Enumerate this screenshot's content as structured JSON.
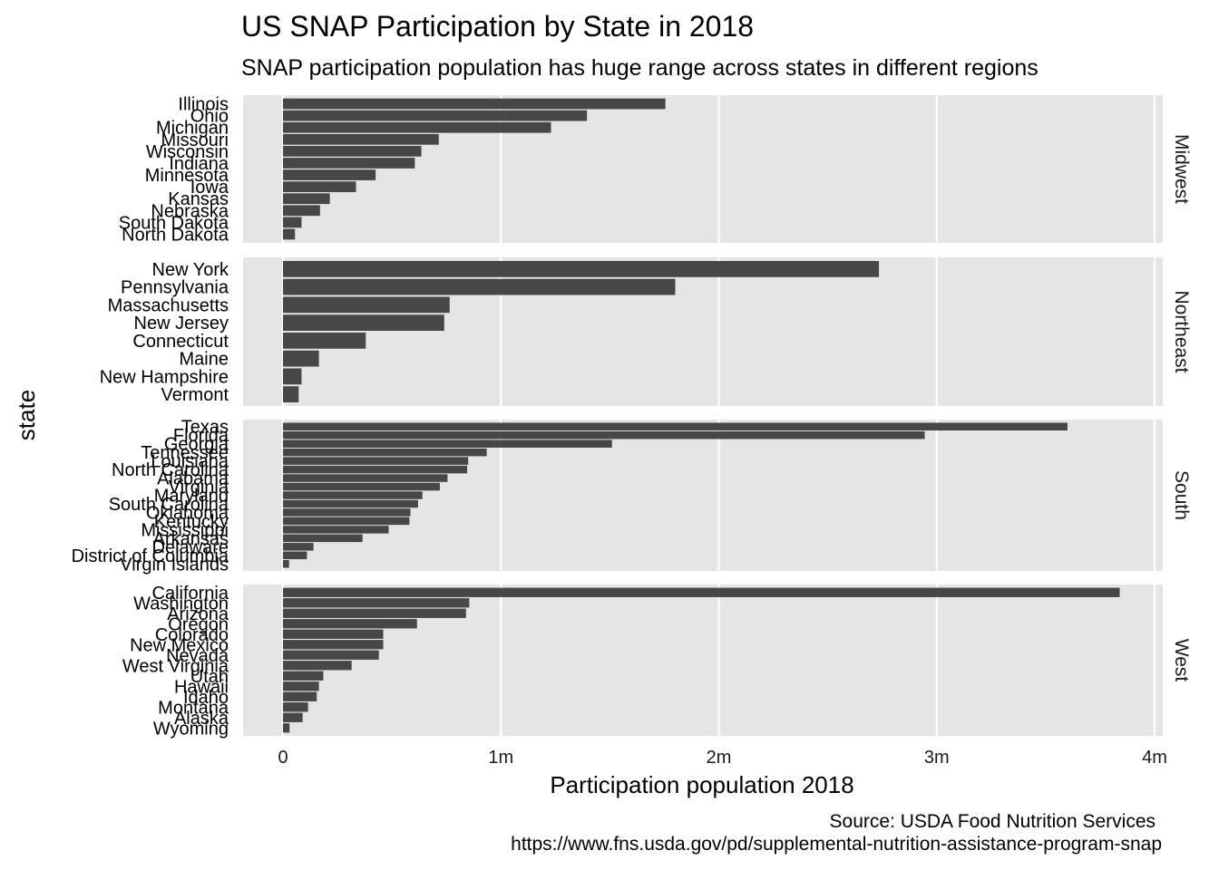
{
  "chart_data": {
    "type": "bar",
    "orientation": "horizontal",
    "faceted": true,
    "title": "US SNAP Participation by State in 2018",
    "subtitle": "SNAP participation population has huge range across states in different regions",
    "xlabel": "Participation population 2018",
    "ylabel": "state",
    "xlim": [
      0,
      4000000
    ],
    "xticks": [
      {
        "value": 0,
        "label": "0"
      },
      {
        "value": 1000000,
        "label": "1m"
      },
      {
        "value": 2000000,
        "label": "2m"
      },
      {
        "value": 3000000,
        "label": "3m"
      },
      {
        "value": 4000000,
        "label": "4m"
      }
    ],
    "grid": true,
    "caption": [
      "Source: USDA Food Nutrition Services",
      "https://www.fns.usda.gov/pd/supplemental-nutrition-assistance-program-snap"
    ],
    "bar_color": "#474747",
    "panel_color": "#e5e5e5",
    "facets": [
      {
        "name": "Midwest",
        "categories": [
          "Illinois",
          "Ohio",
          "Michigan",
          "Missouri",
          "Wisconsin",
          "Indiana",
          "Minnesota",
          "Iowa",
          "Kansas",
          "Nebraska",
          "South Dakota",
          "North Dakota"
        ],
        "values": [
          1755000,
          1395000,
          1230000,
          715000,
          635000,
          605000,
          425000,
          335000,
          215000,
          170000,
          85000,
          55000
        ]
      },
      {
        "name": "Northeast",
        "categories": [
          "New York",
          "Pennsylvania",
          "Massachusetts",
          "New Jersey",
          "Connecticut",
          "Maine",
          "New Hampshire",
          "Vermont"
        ],
        "values": [
          2735000,
          1800000,
          765000,
          740000,
          380000,
          165000,
          85000,
          72000
        ]
      },
      {
        "name": "South",
        "categories": [
          "Texas",
          "Florida",
          "Georgia",
          "Tennessee",
          "Louisiana",
          "North Carolina",
          "Alabama",
          "Virginia",
          "Maryland",
          "South Carolina",
          "Oklahoma",
          "Kentucky",
          "Mississippi",
          "Arkansas",
          "Delaware",
          "District of Columbia",
          "Virgin Islands"
        ],
        "values": [
          3600000,
          2945000,
          1510000,
          935000,
          850000,
          845000,
          755000,
          720000,
          640000,
          620000,
          585000,
          580000,
          485000,
          365000,
          140000,
          110000,
          28000
        ]
      },
      {
        "name": "West",
        "categories": [
          "California",
          "Washington",
          "Arizona",
          "Oregon",
          "Colorado",
          "New Mexico",
          "Nevada",
          "West Virginia",
          "Utah",
          "Hawaii",
          "Idaho",
          "Montana",
          "Alaska",
          "Wyoming"
        ],
        "values": [
          3840000,
          855000,
          840000,
          615000,
          460000,
          460000,
          440000,
          315000,
          185000,
          165000,
          155000,
          115000,
          90000,
          30000
        ]
      }
    ]
  }
}
